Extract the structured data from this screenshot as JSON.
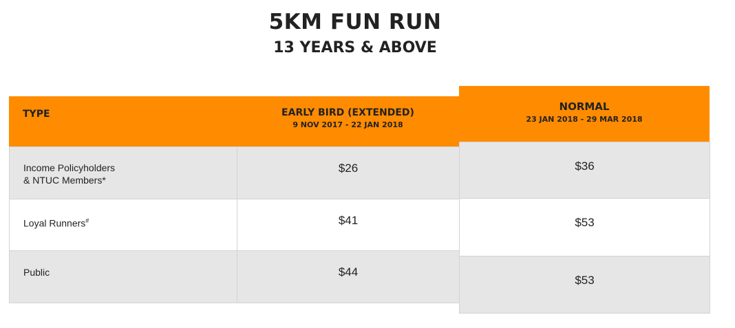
{
  "title": "5KM FUN RUN",
  "subtitle": "13 YEARS & ABOVE",
  "colors": {
    "header": "#ff8b00",
    "row_alt": "#e6e6e6",
    "border": "#d3d3d3"
  },
  "columns": {
    "type": "TYPE",
    "early_bird": {
      "label": "EARLY BIRD (EXTENDED)",
      "dates": "9 NOV 2017 - 22 JAN 2018"
    },
    "normal": {
      "label": "NORMAL",
      "dates": "23 JAN 2018 - 29 MAR 2018"
    }
  },
  "rows": [
    {
      "type_line1": "Income Policyholders",
      "type_line2": "& NTUC Members*",
      "early_bird": "$26",
      "normal": "$36"
    },
    {
      "type_line1": "Loyal Runners",
      "type_sup": "#",
      "early_bird": "$41",
      "normal": "$53"
    },
    {
      "type_line1": "Public",
      "early_bird": "$44",
      "normal": "$53"
    }
  ]
}
